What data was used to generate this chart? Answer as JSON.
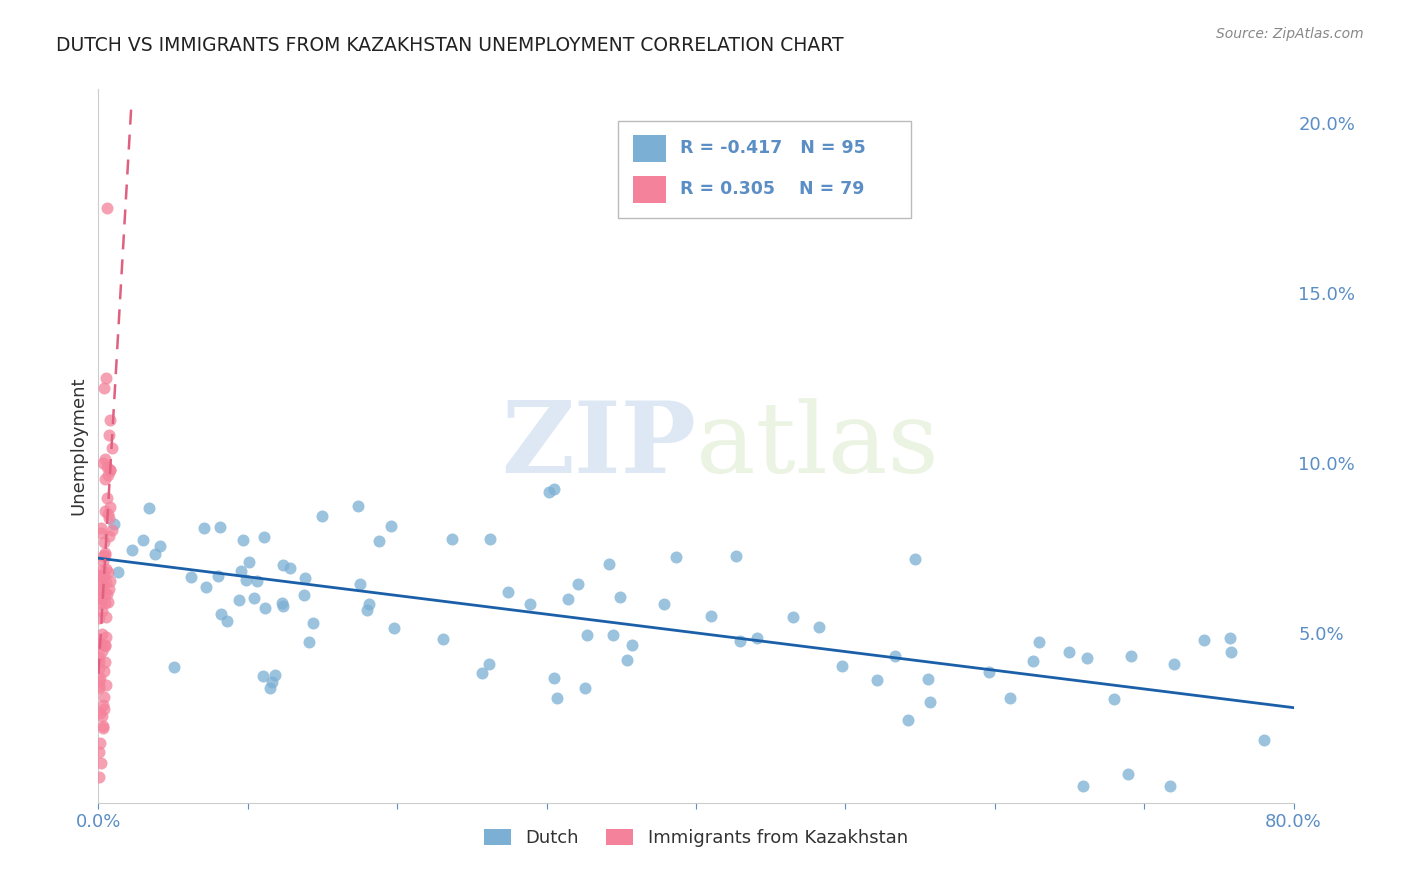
{
  "title": "DUTCH VS IMMIGRANTS FROM KAZAKHSTAN UNEMPLOYMENT CORRELATION CHART",
  "source": "Source: ZipAtlas.com",
  "ylabel": "Unemployment",
  "xlim": [
    0.0,
    0.8
  ],
  "ylim": [
    0.0,
    0.21
  ],
  "ytick_right_labels": [
    "5.0%",
    "10.0%",
    "15.0%",
    "20.0%"
  ],
  "ytick_right_vals": [
    0.05,
    0.1,
    0.15,
    0.2
  ],
  "dutch_color": "#7BAFD4",
  "kazakhstan_color": "#F4829A",
  "trend_dutch_color": "#1A5FA8",
  "trend_kaz_color": "#E06080",
  "legend_dutch_label": "Dutch",
  "legend_kaz_label": "Immigrants from Kazakhstan",
  "R_dutch": -0.417,
  "N_dutch": 95,
  "R_kaz": 0.305,
  "N_kaz": 79,
  "watermark_zip": "ZIP",
  "watermark_atlas": "atlas",
  "axis_color": "#5B8EC5",
  "grid_color": "#CCCCCC",
  "dutch_trend_x": [
    0.0,
    0.8
  ],
  "dutch_trend_y": [
    0.072,
    0.028
  ],
  "kaz_trend_x": [
    0.0,
    0.022
  ],
  "kaz_trend_y": [
    0.038,
    0.205
  ]
}
